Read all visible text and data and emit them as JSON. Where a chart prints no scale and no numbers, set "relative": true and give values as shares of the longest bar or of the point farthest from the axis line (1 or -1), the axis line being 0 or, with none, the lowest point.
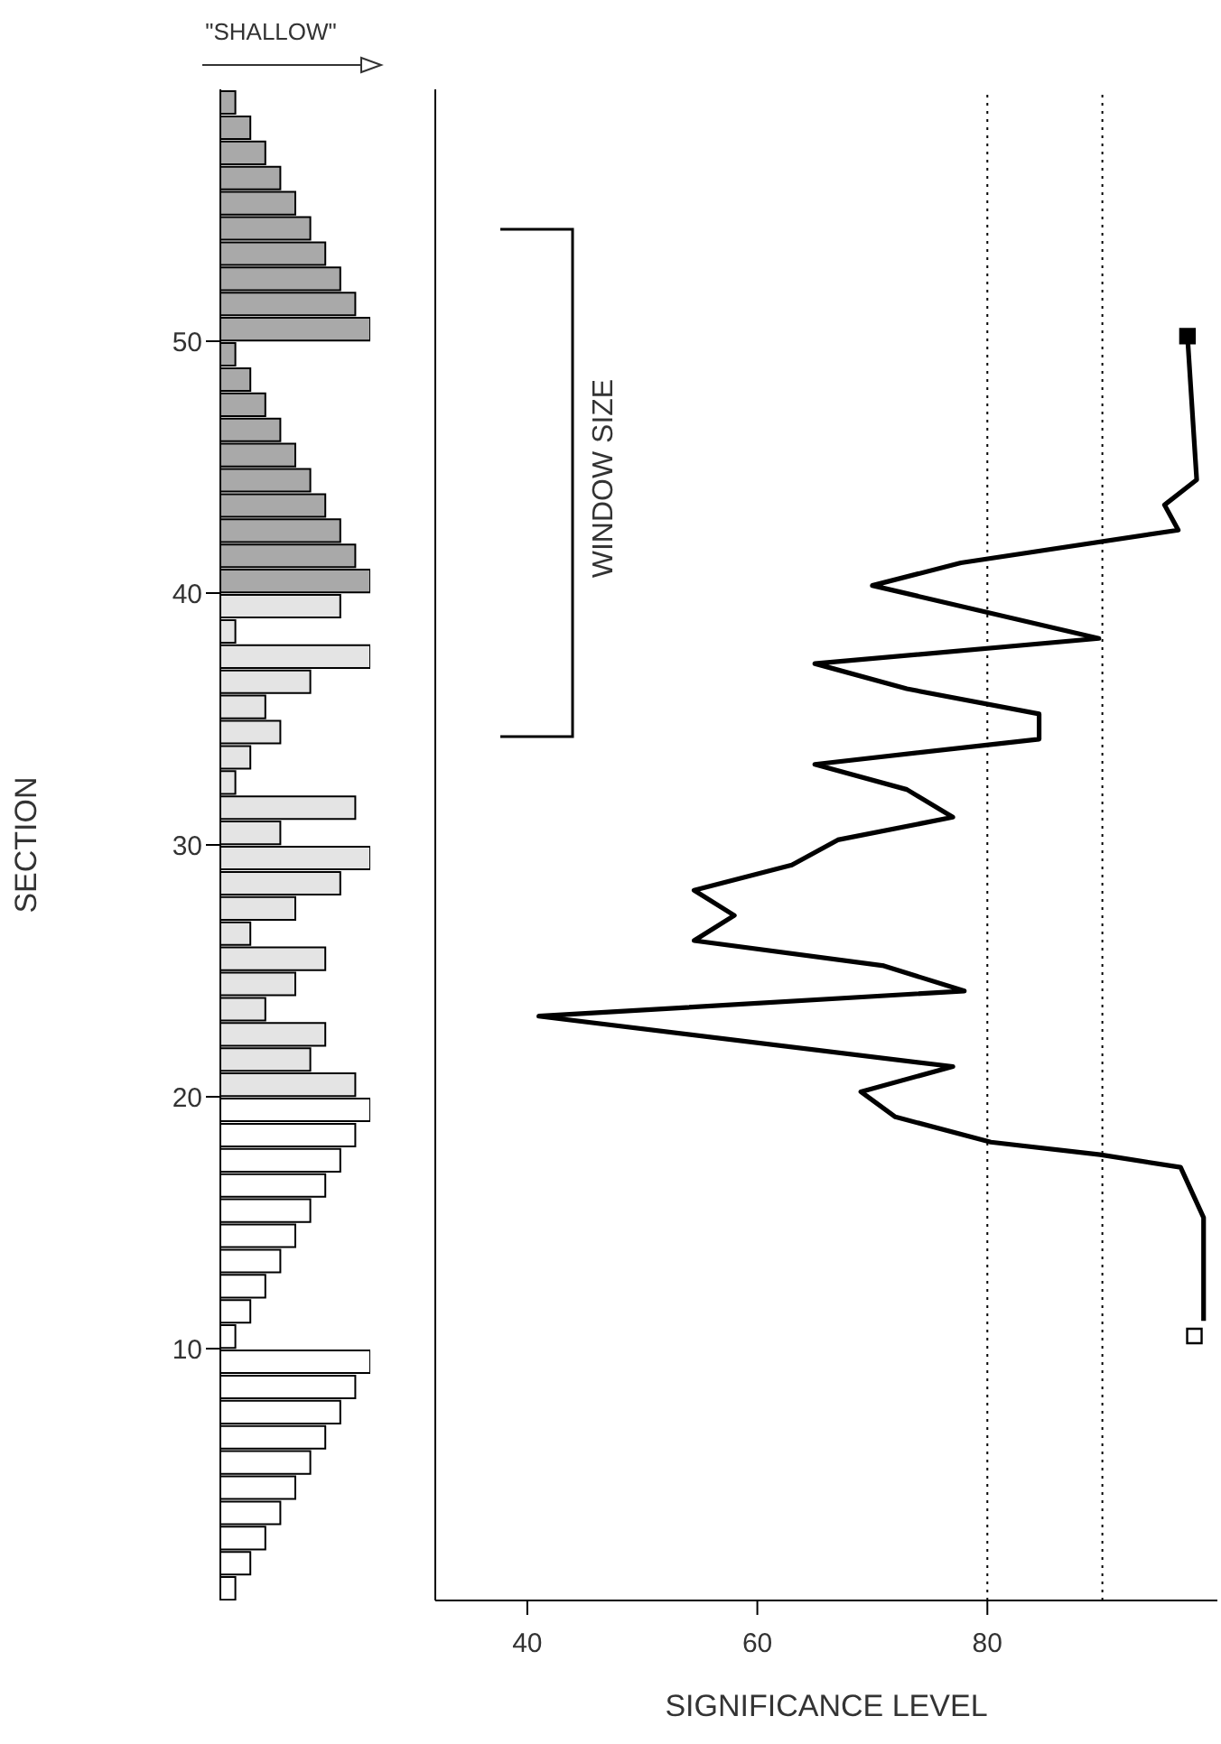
{
  "chart_data": [
    {
      "type": "bar",
      "orientation": "horizontal",
      "relative": true,
      "xlabel": "\"SHALLOW\"",
      "ylabel": "SECTION",
      "ylim": [
        0,
        60
      ],
      "yticks": [
        10,
        20,
        30,
        40,
        50
      ],
      "tick_labels": "y",
      "x": [
        0.5,
        1.5,
        2.5,
        3.5,
        4.5,
        5.5,
        6.5,
        7.5,
        8.5,
        9.5,
        10.5,
        11.5,
        12.5,
        13.5,
        14.5,
        15.5,
        16.5,
        17.5,
        18.5,
        19.5,
        20.5,
        21.5,
        22.5,
        23.5,
        24.5,
        25.5,
        26.5,
        27.5,
        28.5,
        29.5,
        30.5,
        31.5,
        32.5,
        33.5,
        34.5,
        35.5,
        36.5,
        37.5,
        38.5,
        39.5,
        40.5,
        41.5,
        42.5,
        43.5,
        44.5,
        45.5,
        46.5,
        47.5,
        48.5,
        49.5,
        50.5,
        51.5,
        52.5,
        53.5,
        54.5,
        55.5,
        56.5,
        57.5,
        58.5,
        59.5
      ],
      "values": [
        0.1,
        0.2,
        0.3,
        0.4,
        0.5,
        0.6,
        0.7,
        0.8,
        0.9,
        1,
        0.1,
        0.2,
        0.3,
        0.4,
        0.5,
        0.6,
        0.7,
        0.8,
        0.9,
        1,
        0.9,
        0.6,
        0.7,
        0.3,
        0.5,
        0.7,
        0.2,
        0.5,
        0.8,
        1,
        0.4,
        0.9,
        0.1,
        0.2,
        0.4,
        0.3,
        0.6,
        1,
        0.1,
        0.8,
        1,
        0.9,
        0.8,
        0.7,
        0.6,
        0.5,
        0.4,
        0.3,
        0.2,
        0.1,
        1,
        0.9,
        0.8,
        0.7,
        0.6,
        0.5,
        0.4,
        0.3,
        0.2,
        0.1
      ],
      "colors": [
        "#ffffff",
        "#ffffff",
        "#ffffff",
        "#ffffff",
        "#ffffff",
        "#ffffff",
        "#ffffff",
        "#ffffff",
        "#ffffff",
        "#ffffff",
        "#ffffff",
        "#ffffff",
        "#ffffff",
        "#ffffff",
        "#ffffff",
        "#ffffff",
        "#ffffff",
        "#ffffff",
        "#ffffff",
        "#ffffff",
        "#e4e4e4",
        "#e4e4e4",
        "#e4e4e4",
        "#e4e4e4",
        "#e4e4e4",
        "#e4e4e4",
        "#e4e4e4",
        "#e4e4e4",
        "#e4e4e4",
        "#e4e4e4",
        "#e4e4e4",
        "#e4e4e4",
        "#e4e4e4",
        "#e4e4e4",
        "#e4e4e4",
        "#e4e4e4",
        "#e4e4e4",
        "#e4e4e4",
        "#e4e4e4",
        "#e4e4e4",
        "#a9a9a9",
        "#a9a9a9",
        "#a9a9a9",
        "#a9a9a9",
        "#a9a9a9",
        "#a9a9a9",
        "#a9a9a9",
        "#a9a9a9",
        "#a9a9a9",
        "#a9a9a9",
        "#a9a9a9",
        "#a9a9a9",
        "#a9a9a9",
        "#a9a9a9",
        "#a9a9a9",
        "#a9a9a9",
        "#a9a9a9",
        "#a9a9a9",
        "#a9a9a9",
        "#a9a9a9"
      ]
    },
    {
      "type": "line",
      "xlabel": "SIGNIFICANCE LEVEL",
      "annotations": [
        "WINDOW SIZE"
      ],
      "xlim": [
        32,
        100
      ],
      "xticks": [
        40,
        60,
        80
      ],
      "ylim": [
        0,
        60
      ],
      "tick_labels": "x",
      "ref_lines": [
        {
          "axis": "x",
          "value": 80,
          "line_style": "dotted"
        },
        {
          "axis": "x",
          "value": 90,
          "line_style": "dotted"
        }
      ],
      "series": [
        {
          "type": "line",
          "color": "#000000",
          "x": [
            98.8,
            98.8,
            96.8,
            89.8,
            80.3,
            72,
            69,
            77,
            41,
            78,
            71,
            54.5,
            58,
            54.5,
            63,
            67,
            77,
            73,
            65,
            84.5,
            84.5,
            73,
            65,
            89.7,
            70,
            77.7,
            96.6,
            95.4,
            98.2,
            97.4
          ],
          "values": [
            11.1,
            15.2,
            17.2,
            17.7,
            18.2,
            19.2,
            20.2,
            21.2,
            23.2,
            24.2,
            25.2,
            26.2,
            27.2,
            28.2,
            29.2,
            30.2,
            31.1,
            32.2,
            33.2,
            34.2,
            35.2,
            36.2,
            37.2,
            38.2,
            40.3,
            41.2,
            42.5,
            43.5,
            44.5,
            50.2
          ]
        },
        {
          "type": "scatter",
          "marker": "square",
          "color": "#ffffff",
          "x": [
            98
          ],
          "values": [
            10.5
          ]
        },
        {
          "type": "scatter",
          "marker": "square",
          "color": "#000000",
          "x": [
            97.4
          ],
          "values": [
            50.2
          ]
        }
      ]
    }
  ]
}
